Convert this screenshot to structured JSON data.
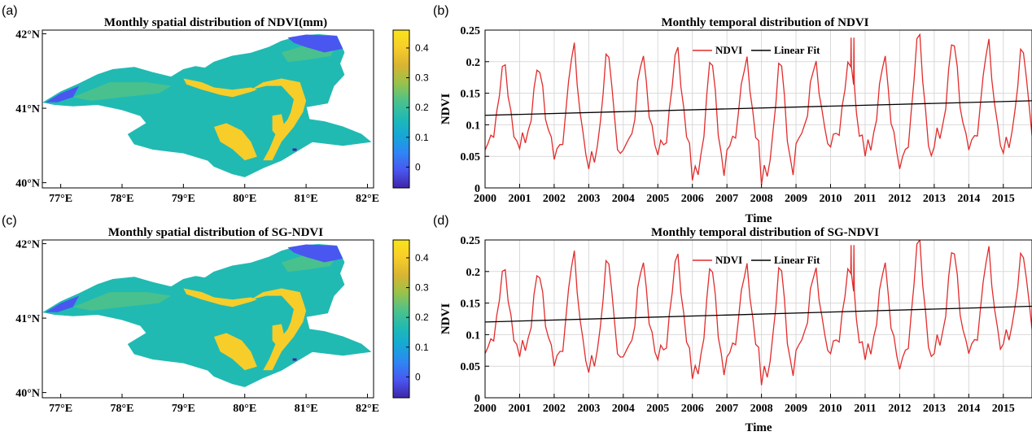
{
  "panels": {
    "a": {
      "label": "(a)",
      "title": "Monthly spatial distribution of NDVI(mm)"
    },
    "b": {
      "label": "(b)",
      "title": "Monthly temporal distribution of NDVI"
    },
    "c": {
      "label": "(c)",
      "title": "Monthly spatial distribution of SG-NDVI"
    },
    "d": {
      "label": "(d)",
      "title": "Monthly temporal distribution of SG-NDVI"
    }
  },
  "colors": {
    "ndvi_line": "#e32b2b",
    "fit_line": "#000000",
    "colormap": [
      "#3e26a8",
      "#4a56f0",
      "#2f85f4",
      "#15a8d6",
      "#20bab3",
      "#4ec28a",
      "#9ac24a",
      "#d9b431",
      "#f7cd2a",
      "#f9e419"
    ]
  },
  "chart_data": [
    {
      "type": "heatmap",
      "panel": "a",
      "title": "Monthly spatial distribution of NDVI(mm)",
      "xticks": [
        "77°E",
        "78°E",
        "79°E",
        "80°E",
        "81°E",
        "82°E"
      ],
      "yticks": [
        "40°N",
        "41°N",
        "42°N"
      ],
      "xlim": [
        76.7,
        82.1
      ],
      "ylim": [
        39.93,
        42.05
      ],
      "colorbar": {
        "ticks": [
          "0",
          "0.1",
          "0.2",
          "0.3",
          "0.4"
        ],
        "range": [
          -0.07,
          0.46
        ]
      }
    },
    {
      "type": "line",
      "panel": "b",
      "title": "Monthly temporal distribution of NDVI",
      "xlabel": "Time",
      "ylabel": "NDVI",
      "xticks": [
        "2000",
        "2001",
        "2002",
        "2003",
        "2004",
        "2005",
        "2006",
        "2007",
        "2008",
        "2009",
        "2010",
        "2011",
        "2012",
        "2013",
        "2014",
        "2015"
      ],
      "yticks": [
        "0",
        "0.05",
        "0.1",
        "0.15",
        "0.2",
        "0.25"
      ],
      "xlim": [
        2000,
        2015.83
      ],
      "ylim": [
        0,
        0.25
      ],
      "grid": true,
      "legend": {
        "position": "top-center",
        "entries": [
          "NDVI",
          "Linear Fit"
        ]
      },
      "series": [
        {
          "name": "NDVI",
          "annual_peaks": [
            0.195,
            0.193,
            0.222,
            0.213,
            0.205,
            0.215,
            0.2,
            0.198,
            0.197,
            0.195,
            0.2,
            0.205,
            0.243,
            0.235,
            0.228,
            0.22
          ],
          "annual_minima": [
            0.06,
            0.062,
            0.045,
            0.03,
            0.06,
            0.052,
            0.012,
            0.06,
            0.005,
            0.07,
            0.065,
            0.05,
            0.03,
            0.065,
            0.06,
            0.055
          ],
          "spike": [
            2010.62,
            0.238
          ]
        },
        {
          "name": "Linear Fit",
          "x": [
            2000,
            2015.83
          ],
          "y": [
            0.115,
            0.138
          ]
        }
      ]
    },
    {
      "type": "heatmap",
      "panel": "c",
      "title": "Monthly spatial distribution of SG-NDVI",
      "xticks": [
        "77°E",
        "78°E",
        "79°E",
        "80°E",
        "81°E",
        "82°E"
      ],
      "yticks": [
        "40°N",
        "41°N",
        "42°N"
      ],
      "xlim": [
        76.7,
        82.1
      ],
      "ylim": [
        39.93,
        42.05
      ],
      "colorbar": {
        "ticks": [
          "0",
          "0.1",
          "0.2",
          "0.3",
          "0.4"
        ],
        "range": [
          -0.07,
          0.46
        ]
      }
    },
    {
      "type": "line",
      "panel": "d",
      "title": "Monthly temporal distribution of SG-NDVI",
      "xlabel": "Time",
      "ylabel": "NDVI",
      "xticks": [
        "2000",
        "2001",
        "2002",
        "2003",
        "2004",
        "2005",
        "2006",
        "2007",
        "2008",
        "2009",
        "2010",
        "2011",
        "2012",
        "2013",
        "2014",
        "2015"
      ],
      "yticks": [
        "0",
        "0.05",
        "0.1",
        "0.15",
        "0.2",
        "0.25"
      ],
      "xlim": [
        2000,
        2015.83
      ],
      "ylim": [
        0,
        0.25
      ],
      "grid": true,
      "legend": {
        "position": "top-center",
        "entries": [
          "NDVI",
          "Linear Fit"
        ]
      },
      "series": [
        {
          "name": "NDVI",
          "annual_peaks": [
            0.203,
            0.2,
            0.225,
            0.218,
            0.21,
            0.22,
            0.205,
            0.203,
            0.205,
            0.2,
            0.205,
            0.21,
            0.25,
            0.238,
            0.232,
            0.228
          ],
          "annual_minima": [
            0.07,
            0.065,
            0.05,
            0.04,
            0.065,
            0.06,
            0.03,
            0.065,
            0.02,
            0.075,
            0.07,
            0.06,
            0.045,
            0.07,
            0.07,
            0.085
          ],
          "spike": [
            2010.62,
            0.242
          ]
        },
        {
          "name": "Linear Fit",
          "x": [
            2000,
            2015.83
          ],
          "y": [
            0.12,
            0.145
          ]
        }
      ]
    }
  ]
}
